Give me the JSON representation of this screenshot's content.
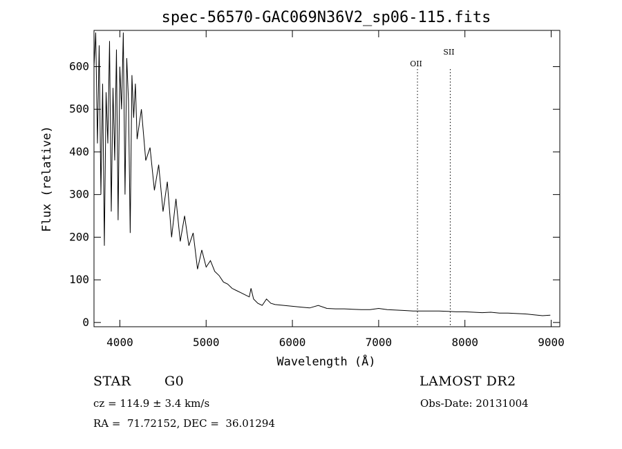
{
  "chart_data": {
    "type": "line",
    "title": "spec-56570-GAC069N36V2_sp06-115.fits",
    "xlabel": "Wavelength (Å)",
    "ylabel": "Flux (relative)",
    "xlim": [
      3700,
      9100
    ],
    "ylim": [
      -10,
      685
    ],
    "xticks": [
      4000,
      5000,
      6000,
      7000,
      8000,
      9000
    ],
    "yticks": [
      0,
      100,
      200,
      300,
      400,
      500,
      600
    ],
    "grid": false,
    "lines": [
      {
        "label": "OII",
        "x": 7450
      },
      {
        "label": "SII",
        "x": 7830
      }
    ],
    "series": [
      {
        "x": [
          3700,
          3720,
          3740,
          3760,
          3780,
          3800,
          3820,
          3840,
          3860,
          3880,
          3900,
          3920,
          3940,
          3960,
          3980,
          4000,
          4020,
          4040,
          4060,
          4080,
          4100,
          4120,
          4140,
          4160,
          4180,
          4200,
          4250,
          4300,
          4350,
          4400,
          4450,
          4500,
          4550,
          4600,
          4650,
          4700,
          4750,
          4800,
          4850,
          4900,
          4950,
          5000,
          5050,
          5100,
          5150,
          5200,
          5250,
          5300,
          5350,
          5400,
          5450,
          5500,
          5520,
          5550,
          5600,
          5650,
          5700,
          5750,
          5800,
          5900,
          6000,
          6100,
          6200,
          6300,
          6400,
          6500,
          6600,
          6700,
          6800,
          6900,
          7000,
          7100,
          7200,
          7300,
          7400,
          7500,
          7600,
          7700,
          7800,
          7900,
          8000,
          8100,
          8200,
          8300,
          8400,
          8500,
          8600,
          8700,
          8800,
          8900,
          8990
        ],
        "y": [
          600,
          680,
          420,
          650,
          300,
          560,
          180,
          540,
          420,
          660,
          260,
          550,
          380,
          640,
          240,
          600,
          500,
          680,
          300,
          620,
          520,
          210,
          580,
          480,
          560,
          430,
          500,
          380,
          410,
          310,
          370,
          260,
          330,
          200,
          290,
          190,
          250,
          180,
          210,
          125,
          170,
          130,
          145,
          120,
          110,
          95,
          90,
          80,
          75,
          70,
          65,
          60,
          80,
          55,
          45,
          40,
          55,
          45,
          42,
          40,
          38,
          36,
          34,
          40,
          33,
          32,
          32,
          31,
          30,
          30,
          33,
          30,
          29,
          28,
          27,
          27,
          27,
          27,
          26,
          25,
          25,
          24,
          23,
          24,
          22,
          22,
          21,
          20,
          18,
          16,
          17
        ]
      }
    ]
  },
  "info": {
    "class": "STAR",
    "subclass": "G0",
    "survey": "LAMOST DR2",
    "cz": "cz = 114.9 ± 3.4 km/s",
    "obs_date": "Obs-Date: 20131004",
    "radec": "RA =  71.72152, DEC =  36.01294"
  }
}
